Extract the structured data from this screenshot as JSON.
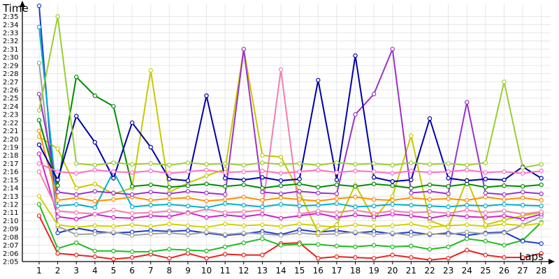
{
  "chart_data": {
    "type": "line",
    "ylabel": "Time",
    "xlabel": "Laps",
    "grid": true,
    "legend": "none",
    "xlim": [
      0.1,
      28.5
    ],
    "ylim": [
      125,
      156.5
    ],
    "x_ticks": [
      1,
      2,
      3,
      4,
      5,
      6,
      7,
      8,
      9,
      10,
      11,
      12,
      13,
      14,
      15,
      16,
      17,
      18,
      19,
      20,
      21,
      22,
      23,
      24,
      25,
      26,
      27,
      28
    ],
    "x_tick_labels": [
      "1",
      "2",
      "3",
      "4",
      "5",
      "6",
      "7",
      "8",
      "9",
      "10",
      "11",
      "12",
      "13",
      "14",
      "15",
      "16",
      "17",
      "18",
      "19",
      "20",
      "21",
      "22",
      "23",
      "24",
      "25",
      "26",
      "27",
      "28"
    ],
    "y_ticks": [
      126,
      127,
      128,
      129,
      130,
      131,
      132,
      133,
      134,
      135,
      136,
      137,
      138,
      139,
      140,
      141,
      142,
      143,
      144,
      145,
      146,
      147,
      148,
      149,
      150,
      151,
      152,
      153,
      154,
      155
    ],
    "y_tick_labels": [
      "2:06",
      "2:07",
      "2:08",
      "2:09",
      "2:10",
      "2:11",
      "2:12",
      "2:13",
      "2:14",
      "2:15",
      "2:16",
      "2:17",
      "2:18",
      "2:19",
      "2:20",
      "2:21",
      "2:22",
      "2:23",
      "2:24",
      "2:25",
      "2:26",
      "2:27",
      "2:28",
      "2:29",
      "2:30",
      "2:31",
      "2:32",
      "2:33",
      "2:34",
      "2:35"
    ],
    "y_extra_tick": {
      "value": 125,
      "label": "2:05"
    },
    "series": [
      {
        "color": "#e8231f",
        "x": [
          1,
          2,
          3,
          4,
          5,
          6,
          7,
          8,
          9,
          10,
          11,
          12,
          13,
          14,
          15,
          16,
          17,
          18,
          19,
          20,
          21,
          22,
          23,
          24,
          25,
          26,
          27,
          28
        ],
        "y": [
          130.6,
          126.0,
          125.8,
          125.6,
          125.3,
          125.5,
          125.9,
          125.4,
          126.0,
          125.4,
          125.9,
          125.8,
          125.8,
          127.2,
          127.3,
          125.4,
          125.6,
          125.5,
          125.4,
          125.8,
          125.5,
          125.2,
          125.4,
          126.4,
          125.8,
          125.5,
          125.5,
          126.0
        ]
      },
      {
        "color": "#22bb22",
        "x": [
          1,
          2,
          3,
          4,
          5,
          6,
          7,
          8,
          9,
          10,
          11,
          12,
          13,
          14,
          15,
          16,
          17,
          18,
          19,
          20,
          21,
          22,
          23,
          24,
          25,
          26,
          27,
          28
        ],
        "y": [
          132.0,
          126.6,
          127.3,
          126.3,
          126.3,
          126.2,
          126.2,
          126.5,
          126.4,
          126.3,
          126.8,
          127.3,
          127.8,
          127.0,
          127.1,
          127.1,
          126.9,
          126.8,
          127.0,
          126.8,
          126.9,
          126.5,
          126.8,
          127.8,
          127.5,
          127.0,
          127.6,
          129.8
        ]
      },
      {
        "color": "#1e3cc8",
        "x": [
          1,
          2,
          3,
          4,
          5,
          6,
          7,
          8,
          9,
          10,
          11,
          12,
          13,
          14,
          15,
          16,
          17,
          18,
          19,
          20,
          21,
          22,
          23,
          24,
          25,
          26,
          27,
          28
        ],
        "y": [
          156.3,
          128.5,
          129.1,
          128.7,
          128.5,
          128.6,
          128.8,
          128.7,
          128.8,
          128.5,
          128.2,
          128.4,
          128.7,
          128.3,
          128.9,
          128.6,
          128.8,
          128.5,
          128.7,
          128.4,
          128.6,
          128.3,
          128.5,
          128.2,
          128.5,
          128.6,
          127.5,
          127.2
        ]
      },
      {
        "color": "#a0a0a0",
        "x": [
          1,
          2,
          3,
          4,
          5,
          6,
          7,
          8,
          9,
          10,
          11,
          12,
          13,
          14,
          15,
          16,
          17,
          18,
          19,
          20,
          21,
          22,
          23,
          24,
          25,
          26,
          27,
          28
        ],
        "y": [
          149.3,
          129.3,
          128.3,
          128.4,
          128.6,
          128.2,
          128.4,
          128.5,
          128.3,
          128.6,
          128.3,
          128.5,
          128.4,
          128.2,
          128.5,
          128.3,
          128.4,
          128.6,
          128.3,
          128.5,
          128.2,
          128.4,
          128.3,
          128.6,
          128.4,
          128.5,
          129.5,
          130.5
        ]
      },
      {
        "color": "#d0d000",
        "x": [
          1,
          2,
          3,
          4,
          5,
          6,
          7,
          8,
          9,
          10,
          11,
          12,
          13,
          14,
          15,
          16,
          17,
          18,
          19,
          20,
          21,
          22,
          23,
          24,
          25,
          26,
          27,
          28
        ],
        "y": [
          133.0,
          129.5,
          129.2,
          129.4,
          129.3,
          129.5,
          129.3,
          129.6,
          129.4,
          129.2,
          129.6,
          129.4,
          129.5,
          129.3,
          129.6,
          129.4,
          129.2,
          129.5,
          129.3,
          129.4,
          129.6,
          129.2,
          129.4,
          129.5,
          129.3,
          129.6,
          129.4,
          129.7
        ]
      },
      {
        "color": "#c8c800",
        "x": [
          1,
          2,
          3,
          4,
          5,
          6,
          7,
          8,
          9,
          10,
          11,
          12,
          13,
          14,
          15,
          16,
          17,
          18,
          19,
          20,
          21,
          22,
          23,
          24,
          25,
          26,
          27,
          28
        ],
        "y": [
          140.3,
          138.8,
          134.0,
          134.5,
          133.3,
          134.0,
          148.4,
          133.5,
          134.6,
          135.5,
          136.3,
          151.0,
          138.0,
          137.8,
          133.5,
          128.5,
          129.5,
          134.4,
          130.2,
          133.0,
          140.4,
          130.0,
          129.2,
          135.0,
          129.5,
          130.1,
          130.6,
          131.0
        ]
      },
      {
        "color": "#d020d0",
        "x": [
          1,
          2,
          3,
          4,
          5,
          6,
          7,
          8,
          9,
          10,
          11,
          12,
          13,
          14,
          15,
          16,
          17,
          18,
          19,
          20,
          21,
          22,
          23,
          24,
          25,
          26,
          27,
          28
        ],
        "y": [
          138.2,
          130.5,
          130.2,
          130.8,
          130.4,
          130.3,
          130.6,
          130.5,
          131.0,
          130.4,
          130.7,
          130.5,
          130.8,
          130.3,
          130.6,
          130.9,
          130.4,
          130.7,
          130.5,
          130.8,
          130.6,
          130.3,
          130.7,
          130.5,
          130.4,
          130.6,
          130.2,
          130.8
        ]
      },
      {
        "color": "#f07fb0",
        "x": [
          1,
          2,
          3,
          4,
          5,
          6,
          7,
          8,
          9,
          10,
          11,
          12,
          13,
          14,
          15,
          16,
          17,
          18,
          19,
          20,
          21,
          22,
          23,
          24,
          25,
          26,
          27,
          28
        ],
        "y": [
          136.0,
          131.2,
          131.0,
          130.8,
          131.3,
          130.9,
          131.0,
          131.2,
          130.9,
          131.4,
          131.0,
          131.1,
          131.3,
          148.5,
          130.8,
          131.2,
          131.0,
          131.3,
          130.9,
          131.2,
          131.0,
          131.1,
          130.9,
          131.3,
          131.0,
          131.2,
          130.8,
          131.1
        ]
      },
      {
        "color": "#00b0d0",
        "x": [
          1,
          2,
          3,
          4,
          5,
          6,
          7,
          8,
          9,
          10,
          11,
          12,
          13,
          14,
          15,
          16,
          17,
          18,
          19,
          20,
          21,
          22,
          23,
          24,
          25,
          26,
          27,
          28
        ],
        "y": [
          153.7,
          131.8,
          132.0,
          131.6,
          136.0,
          131.7,
          131.9,
          132.0,
          131.8,
          131.6,
          132.1,
          131.9,
          131.7,
          132.0,
          131.8,
          131.9,
          132.1,
          131.7,
          131.8,
          132.0,
          131.9,
          131.8,
          131.7,
          131.9,
          131.8,
          132.0,
          131.9,
          131.8
        ]
      },
      {
        "color": "#ff8c00",
        "x": [
          1,
          2,
          3,
          4,
          5,
          6,
          7,
          8,
          9,
          10,
          11,
          12,
          13,
          14,
          15,
          16,
          17,
          18,
          19,
          20,
          21,
          22,
          23,
          24,
          25,
          26,
          27,
          28
        ],
        "y": [
          141.0,
          132.5,
          132.8,
          132.4,
          132.6,
          132.9,
          132.5,
          132.7,
          132.8,
          132.4,
          132.6,
          132.9,
          132.5,
          132.8,
          132.6,
          132.4,
          132.7,
          132.9,
          132.6,
          132.5,
          132.8,
          132.6,
          132.7,
          132.5,
          132.9,
          132.6,
          132.8,
          132.5
        ]
      },
      {
        "color": "#9932cc",
        "x": [
          1,
          2,
          3,
          4,
          5,
          6,
          7,
          8,
          9,
          10,
          11,
          12,
          13,
          14,
          15,
          16,
          17,
          18,
          19,
          20,
          21,
          22,
          23,
          24,
          25,
          26,
          27,
          28
        ],
        "y": [
          145.5,
          133.5,
          133.2,
          133.6,
          133.4,
          133.2,
          133.5,
          133.3,
          133.6,
          133.4,
          133.2,
          151.0,
          133.5,
          133.3,
          133.6,
          133.4,
          133.3,
          143.0,
          145.5,
          151.0,
          133.4,
          133.6,
          133.3,
          144.5,
          133.4,
          133.2,
          133.5,
          133.3
        ]
      },
      {
        "color": "#008c00",
        "x": [
          1,
          2,
          3,
          4,
          5,
          6,
          7,
          8,
          9,
          10,
          11,
          12,
          13,
          14,
          15,
          16,
          17,
          18,
          19,
          20,
          21,
          22,
          23,
          24,
          25,
          26,
          27,
          28
        ],
        "y": [
          142.3,
          134.3,
          147.6,
          145.3,
          144.0,
          134.2,
          134.4,
          134.1,
          134.3,
          134.5,
          134.2,
          134.4,
          134.0,
          134.3,
          134.5,
          134.1,
          134.4,
          134.2,
          134.5,
          134.3,
          134.0,
          134.4,
          134.2,
          134.5,
          134.1,
          134.3,
          134.2,
          134.4
        ]
      },
      {
        "color": "#0000a8",
        "x": [
          1,
          2,
          3,
          4,
          5,
          6,
          7,
          8,
          9,
          10,
          11,
          12,
          13,
          14,
          15,
          16,
          17,
          18,
          19,
          20,
          21,
          22,
          23,
          24,
          25,
          26,
          27,
          28
        ],
        "y": [
          139.3,
          135.0,
          142.8,
          139.6,
          135.2,
          142.0,
          139.0,
          135.1,
          134.9,
          145.3,
          135.2,
          135.0,
          135.3,
          134.9,
          135.1,
          147.2,
          135.0,
          150.2,
          135.3,
          134.8,
          135.0,
          142.5,
          135.2,
          134.9,
          135.1,
          135.0,
          136.6,
          135.2
        ]
      },
      {
        "color": "#ff6ec7",
        "x": [
          1,
          2,
          3,
          4,
          5,
          6,
          7,
          8,
          9,
          10,
          11,
          12,
          13,
          14,
          15,
          16,
          17,
          18,
          19,
          20,
          21,
          22,
          23,
          24,
          25,
          26,
          27,
          28
        ],
        "y": [
          137.0,
          136.0,
          135.8,
          136.2,
          136.0,
          135.9,
          136.1,
          135.8,
          136.0,
          136.2,
          135.9,
          136.0,
          136.1,
          135.8,
          136.0,
          136.2,
          135.9,
          136.1,
          136.0,
          135.8,
          136.1,
          135.9,
          136.0,
          136.2,
          135.9,
          136.0,
          135.8,
          136.1
        ]
      },
      {
        "color": "#9acd32",
        "x": [
          1,
          2,
          3,
          4,
          5,
          6,
          7,
          8,
          9,
          10,
          11,
          12,
          13,
          14,
          15,
          16,
          17,
          18,
          19,
          20,
          21,
          22,
          23,
          24,
          25,
          26,
          27,
          28
        ],
        "y": [
          143.5,
          155.0,
          137.0,
          136.8,
          137.1,
          136.9,
          137.0,
          136.8,
          137.1,
          136.9,
          137.0,
          136.8,
          137.1,
          136.9,
          137.0,
          136.8,
          137.1,
          136.9,
          137.0,
          136.8,
          137.1,
          136.9,
          137.0,
          136.8,
          137.1,
          147.0,
          136.5,
          136.9
        ]
      }
    ]
  }
}
